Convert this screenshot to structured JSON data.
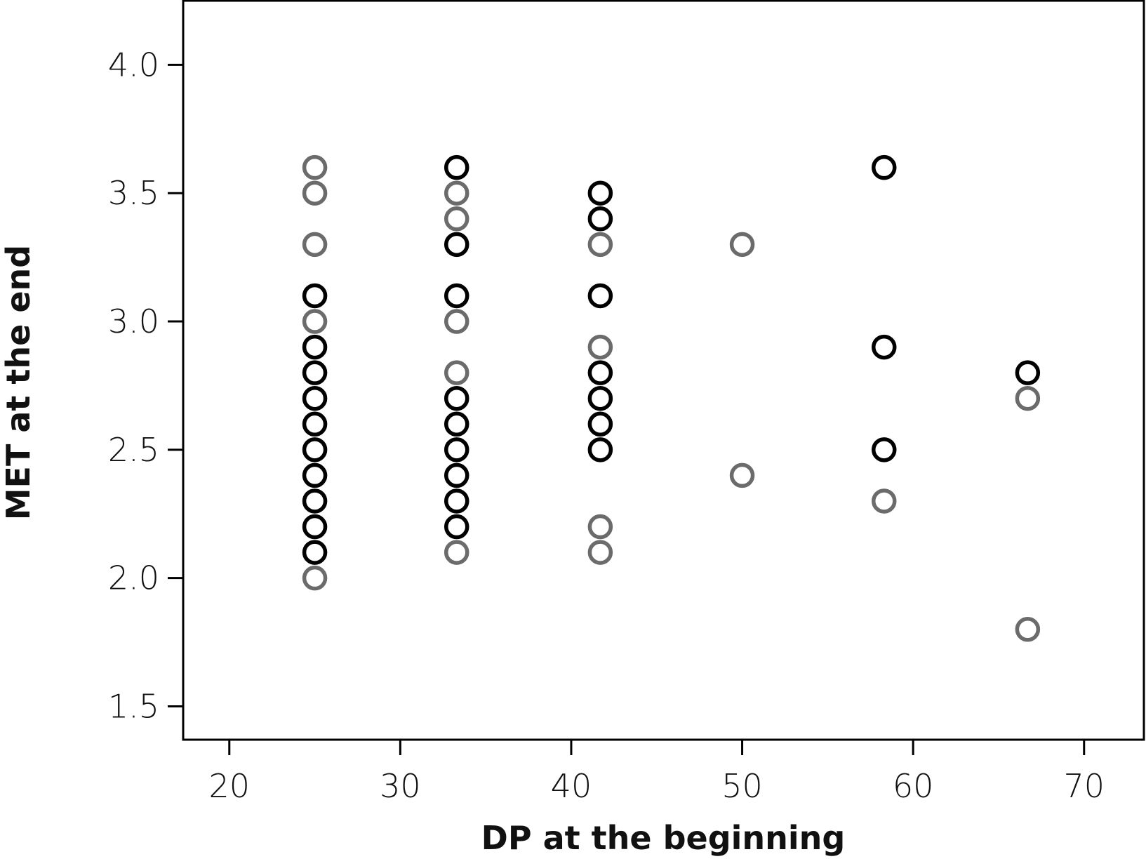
{
  "chart_data": {
    "type": "scatter",
    "xlabel": "DP at the beginning",
    "ylabel": "MET at the end",
    "xlim": [
      17.3,
      73.5
    ],
    "ylim": [
      1.37,
      4.25
    ],
    "x_ticks": [
      20,
      30,
      40,
      50,
      60,
      70
    ],
    "y_ticks": [
      1.5,
      2.0,
      2.5,
      3.0,
      3.5,
      4.0
    ],
    "x_tick_labels": [
      "20",
      "30",
      "40",
      "50",
      "60",
      "70"
    ],
    "y_tick_labels": [
      "1.5",
      "2.0",
      "2.5",
      "3.0",
      "3.5",
      "4.0"
    ],
    "grid": false,
    "series": [
      {
        "color": "#000000",
        "points": [
          [
            25,
            3.1
          ],
          [
            25,
            2.9
          ],
          [
            25,
            2.8
          ],
          [
            25,
            2.7
          ],
          [
            25,
            2.6
          ],
          [
            25,
            2.5
          ],
          [
            25,
            2.4
          ],
          [
            25,
            2.3
          ],
          [
            25,
            2.2
          ],
          [
            25,
            2.1
          ],
          [
            33.3,
            3.6
          ],
          [
            33.3,
            3.3
          ],
          [
            33.3,
            3.1
          ],
          [
            33.3,
            2.7
          ],
          [
            33.3,
            2.6
          ],
          [
            33.3,
            2.5
          ],
          [
            33.3,
            2.4
          ],
          [
            33.3,
            2.3
          ],
          [
            33.3,
            2.2
          ],
          [
            41.7,
            3.5
          ],
          [
            41.7,
            3.4
          ],
          [
            41.7,
            3.1
          ],
          [
            41.7,
            2.8
          ],
          [
            41.7,
            2.7
          ],
          [
            41.7,
            2.6
          ],
          [
            41.7,
            2.5
          ],
          [
            58.3,
            3.6
          ],
          [
            58.3,
            2.9
          ],
          [
            58.3,
            2.5
          ],
          [
            66.7,
            2.8
          ]
        ]
      },
      {
        "color": "#6b6b6b",
        "points": [
          [
            25,
            3.6
          ],
          [
            25,
            3.5
          ],
          [
            25,
            3.3
          ],
          [
            25,
            3.0
          ],
          [
            25,
            2.0
          ],
          [
            33.3,
            3.5
          ],
          [
            33.3,
            3.4
          ],
          [
            33.3,
            3.0
          ],
          [
            33.3,
            2.8
          ],
          [
            33.3,
            2.1
          ],
          [
            41.7,
            3.3
          ],
          [
            41.7,
            2.9
          ],
          [
            41.7,
            2.2
          ],
          [
            41.7,
            2.1
          ],
          [
            50,
            3.3
          ],
          [
            50,
            2.4
          ],
          [
            58.3,
            2.3
          ],
          [
            66.7,
            2.7
          ],
          [
            66.7,
            1.8
          ]
        ]
      }
    ]
  }
}
